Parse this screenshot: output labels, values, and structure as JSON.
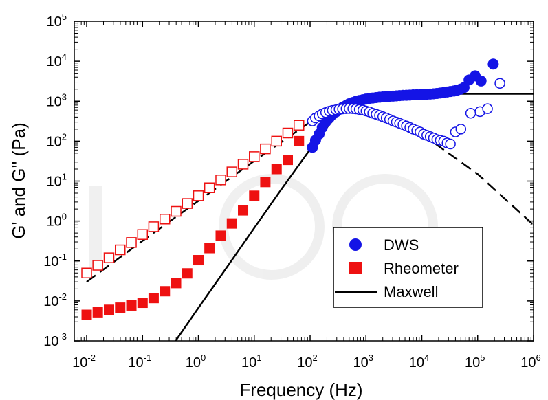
{
  "chart_data": {
    "type": "scatter",
    "xscale": "log",
    "yscale": "log",
    "xlim": [
      0.006,
      1000000
    ],
    "ylim": [
      0.001,
      100000
    ],
    "xlabel": "Frequency (Hz)",
    "ylabel": "G' and G'' (Pa)",
    "xticks": [
      {
        "base": "10",
        "exp": "-2",
        "value": 0.01
      },
      {
        "base": "10",
        "exp": "-1",
        "value": 0.1
      },
      {
        "base": "10",
        "exp": "0",
        "value": 1
      },
      {
        "base": "10",
        "exp": "1",
        "value": 10
      },
      {
        "base": "10",
        "exp": "2",
        "value": 100
      },
      {
        "base": "10",
        "exp": "3",
        "value": 1000
      },
      {
        "base": "10",
        "exp": "4",
        "value": 10000
      },
      {
        "base": "10",
        "exp": "5",
        "value": 100000
      },
      {
        "base": "10",
        "exp": "6",
        "value": 1000000
      }
    ],
    "yticks": [
      {
        "base": "10",
        "exp": "-3",
        "value": 0.001
      },
      {
        "base": "10",
        "exp": "-2",
        "value": 0.01
      },
      {
        "base": "10",
        "exp": "-1",
        "value": 0.1
      },
      {
        "base": "10",
        "exp": "0",
        "value": 1
      },
      {
        "base": "10",
        "exp": "1",
        "value": 10
      },
      {
        "base": "10",
        "exp": "2",
        "value": 100
      },
      {
        "base": "10",
        "exp": "3",
        "value": 1000
      },
      {
        "base": "10",
        "exp": "4",
        "value": 10000
      },
      {
        "base": "10",
        "exp": "5",
        "value": 100000
      }
    ],
    "legend": {
      "position": "lower-right",
      "entries": [
        {
          "label": "DWS",
          "marker": "circle",
          "color": "#1414e6"
        },
        {
          "label": "Rheometer",
          "marker": "square",
          "color": "#ee1111"
        },
        {
          "label": "Maxwell",
          "marker": "line",
          "color": "#000000"
        }
      ]
    },
    "colors": {
      "dws": "#1414e6",
      "rheometer": "#ee1111",
      "maxwell": "#000000"
    },
    "grid": false,
    "series": [
      {
        "name": "DWS",
        "variant": "G'",
        "marker": "filled-circle",
        "x": [
          110,
          125,
          145,
          165,
          190,
          220,
          250,
          290,
          330,
          380,
          440,
          500,
          580,
          660,
          760,
          880,
          1000,
          1150,
          1320,
          1520,
          1750,
          2000,
          2300,
          2650,
          3050,
          3500,
          4000,
          4600,
          5300,
          6100,
          7000,
          8100,
          9300,
          10700,
          12300,
          14100,
          16200,
          18600,
          21400,
          24600,
          28300,
          32500,
          37400,
          43000,
          49500,
          57000,
          70000,
          90000,
          115000,
          190000
        ],
        "y": [
          70,
          105,
          150,
          220,
          300,
          380,
          460,
          540,
          620,
          700,
          780,
          860,
          930,
          990,
          1040,
          1090,
          1130,
          1170,
          1200,
          1230,
          1260,
          1280,
          1300,
          1320,
          1340,
          1360,
          1380,
          1400,
          1410,
          1420,
          1440,
          1450,
          1460,
          1480,
          1490,
          1510,
          1530,
          1560,
          1600,
          1650,
          1700,
          1750,
          1800,
          1900,
          2000,
          2200,
          3400,
          4300,
          3200,
          8500
        ]
      },
      {
        "name": "DWS",
        "variant": "G''",
        "marker": "open-circle",
        "x": [
          110,
          125,
          145,
          165,
          190,
          220,
          250,
          290,
          330,
          380,
          440,
          500,
          580,
          660,
          760,
          880,
          1000,
          1150,
          1320,
          1520,
          1750,
          2000,
          2300,
          2650,
          3050,
          3500,
          4000,
          4600,
          5300,
          6100,
          7000,
          8100,
          9300,
          10700,
          12300,
          14100,
          16200,
          18600,
          21400,
          24600,
          28300,
          32500,
          40000,
          50000,
          75000,
          110000,
          150000,
          250000
        ],
        "y": [
          320,
          380,
          430,
          480,
          520,
          560,
          590,
          610,
          630,
          640,
          650,
          655,
          650,
          640,
          620,
          600,
          570,
          540,
          500,
          470,
          440,
          410,
          380,
          350,
          320,
          300,
          280,
          260,
          240,
          220,
          200,
          185,
          170,
          150,
          140,
          130,
          120,
          110,
          105,
          100,
          90,
          85,
          170,
          200,
          500,
          550,
          650,
          2800
        ]
      },
      {
        "name": "Rheometer",
        "variant": "G'",
        "marker": "filled-square",
        "x": [
          0.01,
          0.0158,
          0.0251,
          0.0398,
          0.0631,
          0.1,
          0.158,
          0.251,
          0.398,
          0.631,
          1,
          1.58,
          2.51,
          3.98,
          6.31,
          10,
          15.8,
          25.1,
          39.8,
          63.1
        ],
        "y": [
          0.0045,
          0.0052,
          0.006,
          0.0068,
          0.0077,
          0.009,
          0.0118,
          0.0175,
          0.028,
          0.049,
          0.105,
          0.21,
          0.43,
          0.87,
          1.85,
          4.3,
          9.5,
          20,
          34,
          100
        ]
      },
      {
        "name": "Rheometer",
        "variant": "G''",
        "marker": "open-square",
        "x": [
          0.01,
          0.0158,
          0.0251,
          0.0398,
          0.0631,
          0.1,
          0.158,
          0.251,
          0.398,
          0.631,
          1,
          1.58,
          2.51,
          3.98,
          6.31,
          10,
          15.8,
          25.1,
          39.8,
          63.1
        ],
        "y": [
          0.05,
          0.078,
          0.12,
          0.19,
          0.29,
          0.46,
          0.72,
          1.12,
          1.75,
          2.75,
          4.3,
          6.8,
          10.7,
          17,
          26.5,
          41,
          64,
          100,
          160,
          250
        ]
      },
      {
        "name": "Maxwell",
        "variant": "G'",
        "style": "solid",
        "x": [
          0.39,
          1,
          3,
          10,
          30,
          100,
          200,
          300,
          500,
          700,
          1000,
          2000,
          5000,
          10000,
          100000,
          1000000
        ],
        "y": [
          0.001,
          0.0067,
          0.06,
          0.67,
          6,
          62,
          220,
          430,
          810,
          1070,
          1270,
          1460,
          1520,
          1530,
          1530,
          1530
        ]
      },
      {
        "name": "Maxwell",
        "variant": "G''",
        "style": "dashed",
        "x": [
          0.01,
          0.1,
          1,
          10,
          100,
          300,
          700,
          1000,
          3000,
          10000,
          100000,
          1000000
        ],
        "y": [
          0.03,
          0.32,
          3.2,
          32,
          300,
          660,
          760,
          700,
          400,
          150,
          15,
          0.8
        ]
      }
    ]
  }
}
